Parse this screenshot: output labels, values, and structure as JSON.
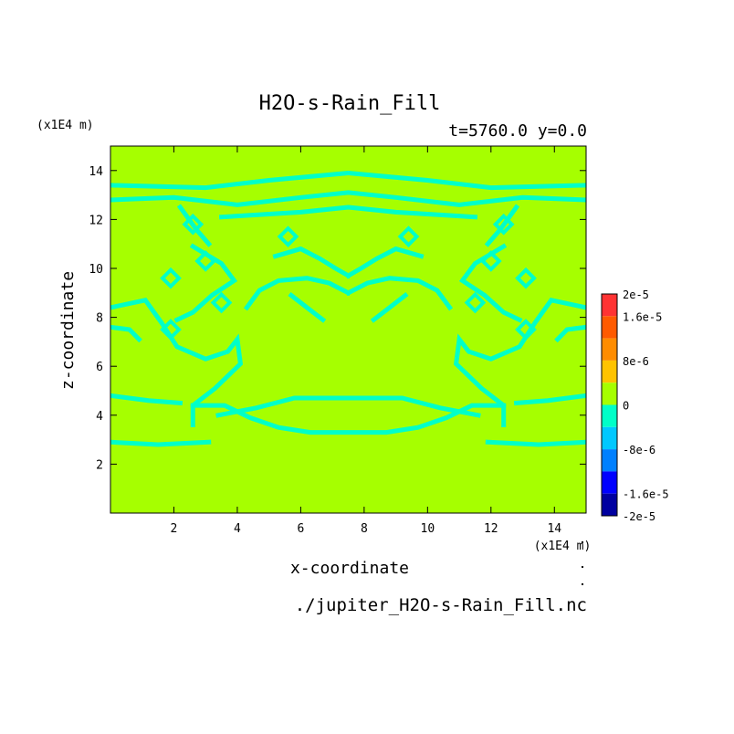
{
  "chart_data": {
    "type": "heatmap",
    "title": "H2O-s-Rain_Fill",
    "subtitle": "t=5760.0 y=0.0",
    "xlabel": "x-coordinate",
    "ylabel": "z-coordinate",
    "x_unit": "(x1E4 m)",
    "y_unit": "(x1E4 m)",
    "source_file": "./jupiter_H2O-s-Rain_Fill.nc",
    "xlim": [
      0,
      15
    ],
    "ylim": [
      0,
      15
    ],
    "x_ticks": [
      "2",
      "4",
      "6",
      "8",
      "10",
      "12",
      "14"
    ],
    "y_ticks": [
      "2",
      "4",
      "6",
      "8",
      "10",
      "12",
      "14"
    ],
    "background_value": 0,
    "feature_value": -4e-06,
    "contour_features": [
      {
        "kind": "path",
        "points": [
          [
            0,
            13.4
          ],
          [
            3,
            13.3
          ],
          [
            5,
            13.6
          ],
          [
            7.5,
            13.9
          ],
          [
            10,
            13.6
          ],
          [
            12,
            13.3
          ],
          [
            15,
            13.4
          ]
        ]
      },
      {
        "kind": "path",
        "points": [
          [
            0,
            12.8
          ],
          [
            2,
            12.9
          ],
          [
            4,
            12.6
          ],
          [
            6,
            12.9
          ],
          [
            7.5,
            13.1
          ],
          [
            9,
            12.9
          ],
          [
            11,
            12.6
          ],
          [
            13,
            12.9
          ],
          [
            15,
            12.8
          ]
        ]
      },
      {
        "kind": "path",
        "points": [
          [
            3.5,
            12.1
          ],
          [
            6,
            12.3
          ],
          [
            7.5,
            12.5
          ],
          [
            9,
            12.3
          ],
          [
            11.5,
            12.1
          ]
        ]
      },
      {
        "kind": "path",
        "points": [
          [
            2.2,
            12.5
          ],
          [
            2.7,
            11.6
          ],
          [
            3.1,
            11.0
          ]
        ]
      },
      {
        "kind": "path",
        "points": [
          [
            12.8,
            12.5
          ],
          [
            12.3,
            11.6
          ],
          [
            11.9,
            11.0
          ]
        ]
      },
      {
        "kind": "path",
        "points": [
          [
            5.2,
            10.5
          ],
          [
            6,
            10.8
          ],
          [
            6.6,
            10.4
          ],
          [
            7.1,
            10.0
          ],
          [
            7.5,
            9.7
          ]
        ]
      },
      {
        "kind": "path",
        "points": [
          [
            9.8,
            10.5
          ],
          [
            9,
            10.8
          ],
          [
            8.4,
            10.4
          ],
          [
            7.9,
            10.0
          ],
          [
            7.5,
            9.7
          ]
        ]
      },
      {
        "kind": "path",
        "points": [
          [
            4.3,
            8.4
          ],
          [
            4.7,
            9.1
          ],
          [
            5.3,
            9.5
          ],
          [
            6.2,
            9.6
          ],
          [
            6.9,
            9.4
          ],
          [
            7.5,
            9.0
          ]
        ]
      },
      {
        "kind": "path",
        "points": [
          [
            10.7,
            8.4
          ],
          [
            10.3,
            9.1
          ],
          [
            9.7,
            9.5
          ],
          [
            8.8,
            9.6
          ],
          [
            8.1,
            9.4
          ],
          [
            7.5,
            9.0
          ]
        ]
      },
      {
        "kind": "path",
        "points": [
          [
            5.7,
            8.9
          ],
          [
            6.3,
            8.3
          ],
          [
            6.7,
            7.9
          ]
        ]
      },
      {
        "kind": "path",
        "points": [
          [
            9.3,
            8.9
          ],
          [
            8.7,
            8.3
          ],
          [
            8.3,
            7.9
          ]
        ]
      },
      {
        "kind": "path",
        "points": [
          [
            2.6,
            10.9
          ],
          [
            3.5,
            10.2
          ],
          [
            3.9,
            9.5
          ],
          [
            3.2,
            8.9
          ],
          [
            2.6,
            8.2
          ],
          [
            2.1,
            7.9
          ]
        ]
      },
      {
        "kind": "path",
        "points": [
          [
            12.4,
            10.9
          ],
          [
            11.5,
            10.2
          ],
          [
            11.1,
            9.5
          ],
          [
            11.8,
            8.9
          ],
          [
            12.4,
            8.2
          ],
          [
            12.9,
            7.9
          ]
        ]
      },
      {
        "kind": "path",
        "points": [
          [
            0,
            8.4
          ],
          [
            1.1,
            8.7
          ],
          [
            1.6,
            7.8
          ],
          [
            2.1,
            6.8
          ],
          [
            3,
            6.3
          ],
          [
            3.7,
            6.6
          ],
          [
            4,
            7.1
          ],
          [
            4.1,
            6.1
          ],
          [
            3.3,
            5.1
          ],
          [
            2.6,
            4.4
          ],
          [
            2.6,
            3.6
          ]
        ]
      },
      {
        "kind": "path",
        "points": [
          [
            15,
            8.4
          ],
          [
            13.9,
            8.7
          ],
          [
            13.4,
            7.8
          ],
          [
            12.9,
            6.8
          ],
          [
            12,
            6.3
          ],
          [
            11.3,
            6.6
          ],
          [
            11,
            7.1
          ],
          [
            10.9,
            6.1
          ],
          [
            11.7,
            5.1
          ],
          [
            12.4,
            4.4
          ],
          [
            12.4,
            3.6
          ]
        ]
      },
      {
        "kind": "path",
        "points": [
          [
            2.6,
            4.4
          ],
          [
            3.6,
            4.4
          ],
          [
            4.4,
            3.9
          ],
          [
            5.3,
            3.5
          ],
          [
            6.3,
            3.3
          ],
          [
            7.5,
            3.3
          ],
          [
            8.7,
            3.3
          ],
          [
            9.7,
            3.5
          ],
          [
            10.6,
            3.9
          ],
          [
            11.4,
            4.4
          ],
          [
            12.4,
            4.4
          ]
        ]
      },
      {
        "kind": "path",
        "points": [
          [
            3.4,
            4.0
          ],
          [
            4.6,
            4.3
          ],
          [
            5.8,
            4.7
          ],
          [
            7.5,
            4.7
          ],
          [
            9.2,
            4.7
          ],
          [
            10.4,
            4.3
          ],
          [
            11.6,
            4.0
          ]
        ]
      },
      {
        "kind": "path",
        "points": [
          [
            0,
            4.8
          ],
          [
            1.2,
            4.6
          ],
          [
            2.2,
            4.5
          ]
        ]
      },
      {
        "kind": "path",
        "points": [
          [
            15,
            4.8
          ],
          [
            13.8,
            4.6
          ],
          [
            12.8,
            4.5
          ]
        ]
      },
      {
        "kind": "path",
        "points": [
          [
            0,
            2.9
          ],
          [
            1.5,
            2.8
          ],
          [
            3.1,
            2.9
          ]
        ]
      },
      {
        "kind": "path",
        "points": [
          [
            15,
            2.9
          ],
          [
            13.5,
            2.8
          ],
          [
            11.9,
            2.9
          ]
        ]
      },
      {
        "kind": "path",
        "points": [
          [
            0,
            7.6
          ],
          [
            0.6,
            7.5
          ],
          [
            0.9,
            7.1
          ]
        ]
      },
      {
        "kind": "path",
        "points": [
          [
            15,
            7.6
          ],
          [
            14.4,
            7.5
          ],
          [
            14.1,
            7.1
          ]
        ]
      },
      {
        "kind": "blob",
        "points": [
          [
            1.9,
            7.5
          ],
          [
            13.1,
            7.5
          ],
          [
            1.9,
            9.6
          ],
          [
            13.1,
            9.6
          ],
          [
            3.0,
            10.3
          ],
          [
            12.0,
            10.3
          ],
          [
            3.5,
            8.6
          ],
          [
            11.5,
            8.6
          ],
          [
            2.6,
            11.8
          ],
          [
            12.4,
            11.8
          ],
          [
            5.6,
            11.3
          ],
          [
            9.4,
            11.3
          ]
        ]
      }
    ]
  },
  "colorbar": {
    "labels": [
      "2e-5",
      "1.6e-5",
      "8e-6",
      "0",
      "-8e-6",
      "-1.6e-5",
      "-2e-5"
    ],
    "levels": [
      {
        "from": 1.6e-05,
        "to": 2e-05,
        "color": "#ff3333"
      },
      {
        "from": 1.2e-05,
        "to": 1.6e-05,
        "color": "#ff5a00"
      },
      {
        "from": 8e-06,
        "to": 1.2e-05,
        "color": "#ff8c00"
      },
      {
        "from": 4e-06,
        "to": 8e-06,
        "color": "#ffc300"
      },
      {
        "from": 0,
        "to": 4e-06,
        "color": "#a6ff00"
      },
      {
        "from": -4e-06,
        "to": 0,
        "color": "#00ffc8"
      },
      {
        "from": -8e-06,
        "to": -4e-06,
        "color": "#00c8ff"
      },
      {
        "from": -1.2e-05,
        "to": -8e-06,
        "color": "#0080ff"
      },
      {
        "from": -1.6e-05,
        "to": -1.2e-05,
        "color": "#0000ff"
      },
      {
        "from": -2e-05,
        "to": -1.6e-05,
        "color": "#0000a0"
      }
    ]
  },
  "colors": {
    "background_field": "#a6ff00",
    "feature": "#00ffc8"
  }
}
